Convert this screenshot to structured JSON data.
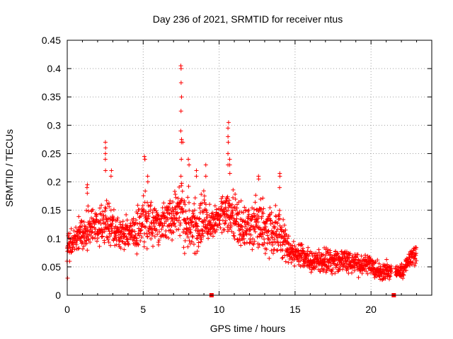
{
  "chart_data": {
    "type": "scatter",
    "title": "Day 236 of 2021, SRMTID for receiver ntus",
    "xlabel": "GPS time / hours",
    "ylabel": "SRMTID / TECUs",
    "xlim": [
      0,
      24
    ],
    "ylim": [
      0,
      0.45
    ],
    "xticks": [
      "0",
      "5",
      "10",
      "15",
      "20"
    ],
    "yticks": [
      "0",
      "0.05",
      "0.1",
      "0.15",
      "0.2",
      "0.25",
      "0.3",
      "0.35",
      "0.4",
      "0.45"
    ],
    "grid": true,
    "marker": "+",
    "marker_color": "#ff0000",
    "gap_markers": {
      "x": [
        9.5,
        21.5
      ],
      "y": 0,
      "color": "#ff0000"
    },
    "envelope": {
      "x": [
        0,
        0.5,
        1,
        1.5,
        2,
        2.5,
        3,
        3.5,
        4,
        4.5,
        5,
        5.5,
        6,
        6.5,
        7,
        7.5,
        8,
        8.5,
        9,
        9.5,
        10,
        10.5,
        11,
        11.5,
        12,
        12.5,
        13,
        13.5,
        14,
        14.5,
        15,
        15.5,
        16,
        16.5,
        17,
        17.5,
        18,
        18.5,
        19,
        19.5,
        20,
        20.5,
        21,
        21.5,
        22,
        22.5,
        23
      ],
      "low": [
        0.05,
        0.06,
        0.06,
        0.07,
        0.07,
        0.07,
        0.07,
        0.07,
        0.07,
        0.07,
        0.07,
        0.07,
        0.08,
        0.08,
        0.08,
        0.07,
        0.06,
        0.06,
        0.07,
        0.08,
        0.09,
        0.09,
        0.08,
        0.07,
        0.07,
        0.06,
        0.06,
        0.05,
        0.05,
        0.05,
        0.04,
        0.04,
        0.03,
        0.03,
        0.03,
        0.03,
        0.03,
        0.03,
        0.03,
        0.03,
        0.03,
        0.02,
        0.02,
        0.03,
        0.02,
        0.04,
        0.05
      ],
      "high": [
        0.12,
        0.14,
        0.16,
        0.17,
        0.16,
        0.2,
        0.17,
        0.15,
        0.15,
        0.15,
        0.2,
        0.19,
        0.17,
        0.19,
        0.2,
        0.22,
        0.2,
        0.19,
        0.2,
        0.17,
        0.18,
        0.2,
        0.2,
        0.18,
        0.17,
        0.2,
        0.18,
        0.17,
        0.17,
        0.13,
        0.11,
        0.1,
        0.09,
        0.09,
        0.09,
        0.09,
        0.09,
        0.09,
        0.08,
        0.08,
        0.08,
        0.07,
        0.07,
        0.05,
        0.06,
        0.08,
        0.1
      ]
    },
    "spikes": [
      {
        "x": 0.0,
        "y": [
          0.03,
          0.06
        ]
      },
      {
        "x": 1.3,
        "y": [
          0.18,
          0.19,
          0.195
        ]
      },
      {
        "x": 2.5,
        "y": [
          0.22,
          0.24,
          0.25,
          0.26,
          0.27
        ]
      },
      {
        "x": 2.9,
        "y": [
          0.21,
          0.22
        ]
      },
      {
        "x": 5.1,
        "y": [
          0.24,
          0.24,
          0.245
        ]
      },
      {
        "x": 5.3,
        "y": [
          0.2,
          0.21
        ]
      },
      {
        "x": 7.5,
        "y": [
          0.21,
          0.24,
          0.27,
          0.275,
          0.29,
          0.325,
          0.35,
          0.375,
          0.4,
          0.405
        ]
      },
      {
        "x": 7.6,
        "y": [
          0.27
        ]
      },
      {
        "x": 8.0,
        "y": [
          0.23,
          0.24
        ]
      },
      {
        "x": 8.5,
        "y": [
          0.21,
          0.22
        ]
      },
      {
        "x": 9.1,
        "y": [
          0.21,
          0.23
        ]
      },
      {
        "x": 10.6,
        "y": [
          0.23,
          0.25,
          0.27,
          0.28,
          0.295,
          0.305
        ]
      },
      {
        "x": 10.7,
        "y": [
          0.215,
          0.23,
          0.24
        ]
      },
      {
        "x": 12.6,
        "y": [
          0.205,
          0.21
        ]
      },
      {
        "x": 14.0,
        "y": [
          0.19,
          0.21,
          0.215
        ]
      }
    ]
  }
}
